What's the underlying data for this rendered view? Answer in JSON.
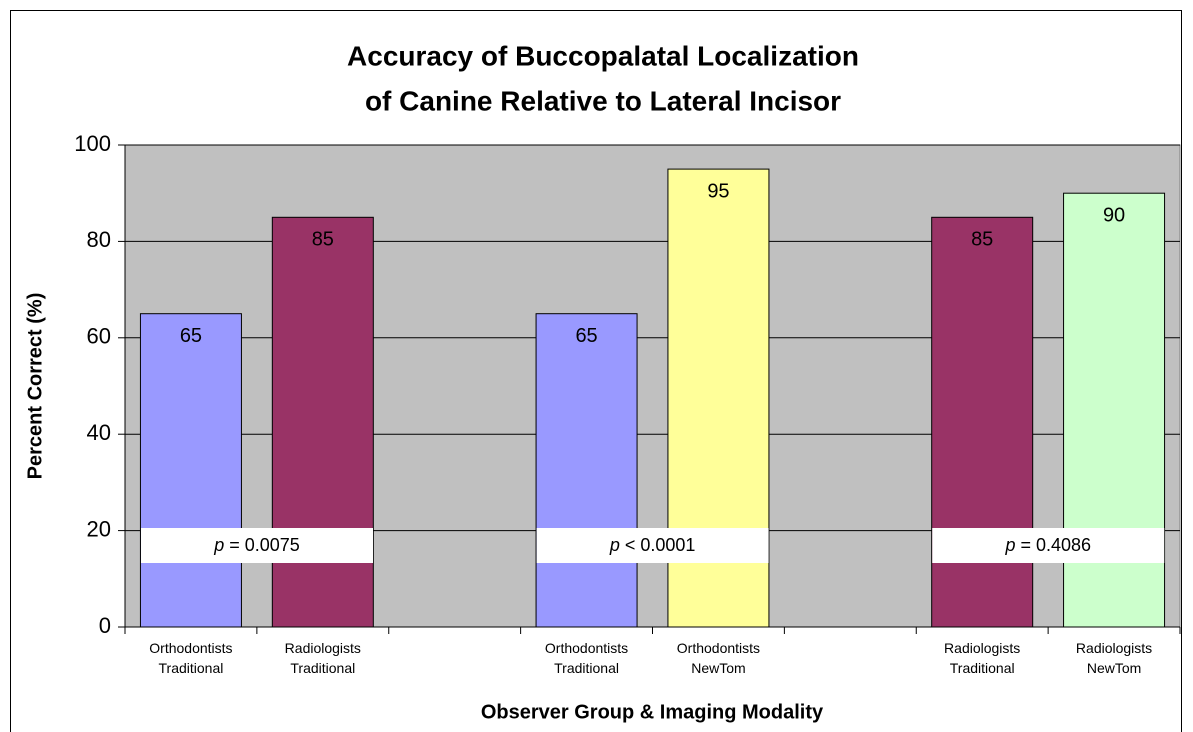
{
  "chart_data": {
    "type": "bar",
    "title": [
      "Accuracy of Buccopalatal Localization",
      "of Canine Relative to Lateral Incisor"
    ],
    "y_label": "Percent Correct (%)",
    "x_label": "Observer Group & Imaging Modality",
    "categories": [
      "Orthodontists\nTraditional",
      "Radiologists\nTraditional",
      null,
      "Orthodontists\nTraditional",
      "Orthodontists\nNewTom",
      null,
      "Radiologists\nTraditional",
      "Radiologists\nNewTom"
    ],
    "values": [
      65,
      85,
      null,
      65,
      95,
      null,
      85,
      90
    ],
    "colors": [
      "#9999ff",
      "#993366",
      null,
      "#9999ff",
      "#ffff99",
      null,
      "#993366",
      "#ccffcc"
    ],
    "annotations": [
      {
        "italic": "p",
        "text": " = 0.0075"
      },
      {
        "italic": "p",
        "text": " < 0.0001"
      },
      {
        "italic": "p",
        "text": " = 0.4086"
      }
    ],
    "ylim": [
      0,
      100
    ],
    "yticks": [
      0,
      20,
      40,
      60,
      80,
      100
    ],
    "grid": true,
    "plot_color": "#c0c0c0"
  }
}
